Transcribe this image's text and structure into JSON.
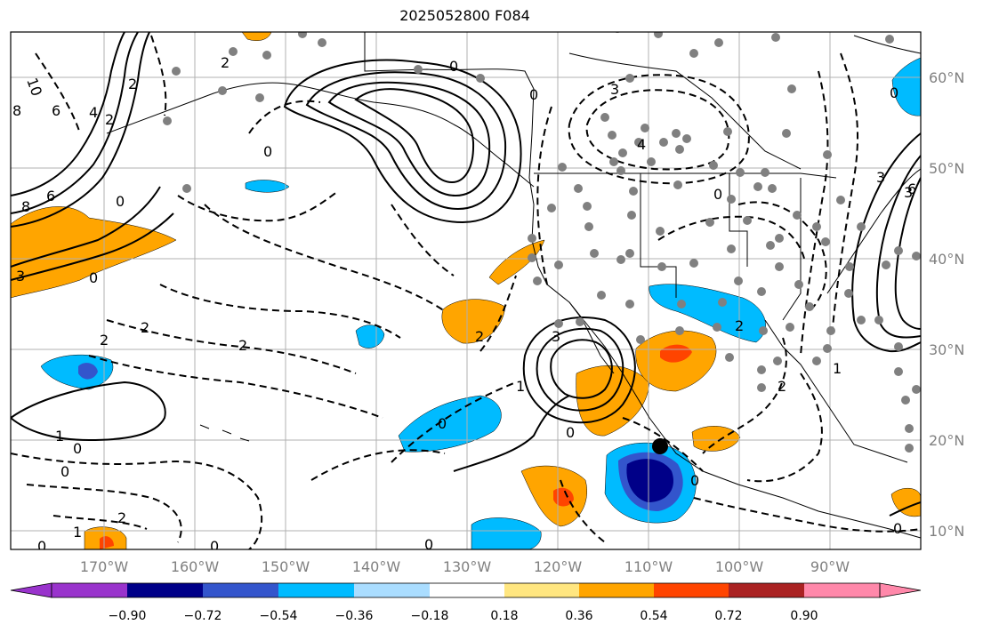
{
  "title": "2025052800 F084",
  "lon_ticks": [
    "170°W",
    "160°W",
    "150°W",
    "140°W",
    "130°W",
    "120°W",
    "110°W",
    "100°W",
    "90°W"
  ],
  "lat_ticks": [
    "60°N",
    "50°N",
    "40°N",
    "30°N",
    "20°N",
    "10°N"
  ],
  "colorbar": {
    "ticks": [
      "−0.90",
      "−0.72",
      "−0.54",
      "−0.36",
      "−0.18",
      "0.18",
      "0.36",
      "0.54",
      "0.72",
      "0.90"
    ],
    "colors": [
      "#9933cc",
      "#000088",
      "#3355cc",
      "#00bbff",
      "#aaddff",
      "#ffffff",
      "#ffe680",
      "#ffa500",
      "#ff4400",
      "#aa2222",
      "#ff88aa"
    ]
  },
  "contour_labels": [
    "10",
    "8",
    "6",
    "4",
    "2",
    "2",
    "0",
    "0",
    "3",
    "4",
    "0",
    "6",
    "8",
    "3",
    "0",
    "3",
    "2",
    "2",
    "2",
    "2",
    "3",
    "0",
    "0",
    "1",
    "0",
    "0",
    "1",
    "2",
    "1",
    "0",
    "0",
    "0",
    "0",
    "2",
    "1",
    "3",
    "0",
    "6",
    "2",
    "0",
    "2",
    "0",
    "0"
  ],
  "colors": {
    "coast": "#000000",
    "grid": "#b0b0b0",
    "station": "#808080",
    "orange": "#ffa500",
    "cyan": "#00bbff",
    "red": "#ff4400",
    "blue": "#3355cc",
    "navy": "#000088"
  }
}
